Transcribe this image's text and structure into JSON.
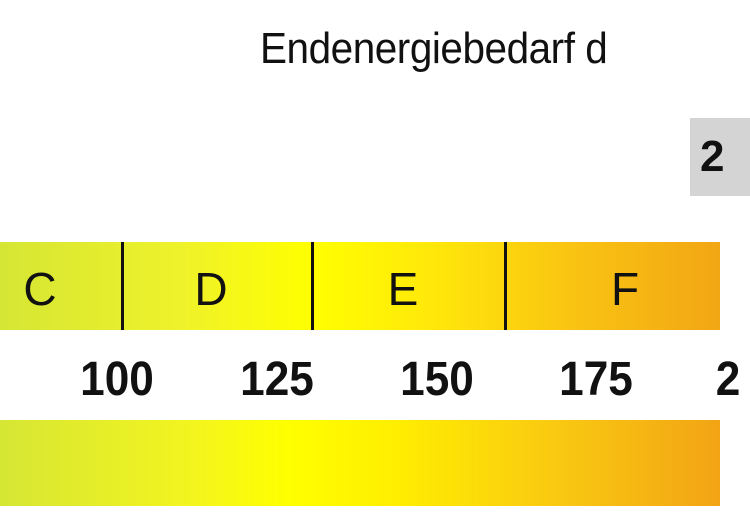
{
  "title": "Endenergiebedarf d",
  "value_box": "2",
  "classes": [
    "C",
    "D",
    "E",
    "F"
  ],
  "ticks": [
    "100",
    "125",
    "150",
    "175",
    "2"
  ],
  "colors": {
    "left": "#d6e634",
    "middle": "#ffff00",
    "right": "#f2a614",
    "value_box": "#d4d4d4"
  }
}
